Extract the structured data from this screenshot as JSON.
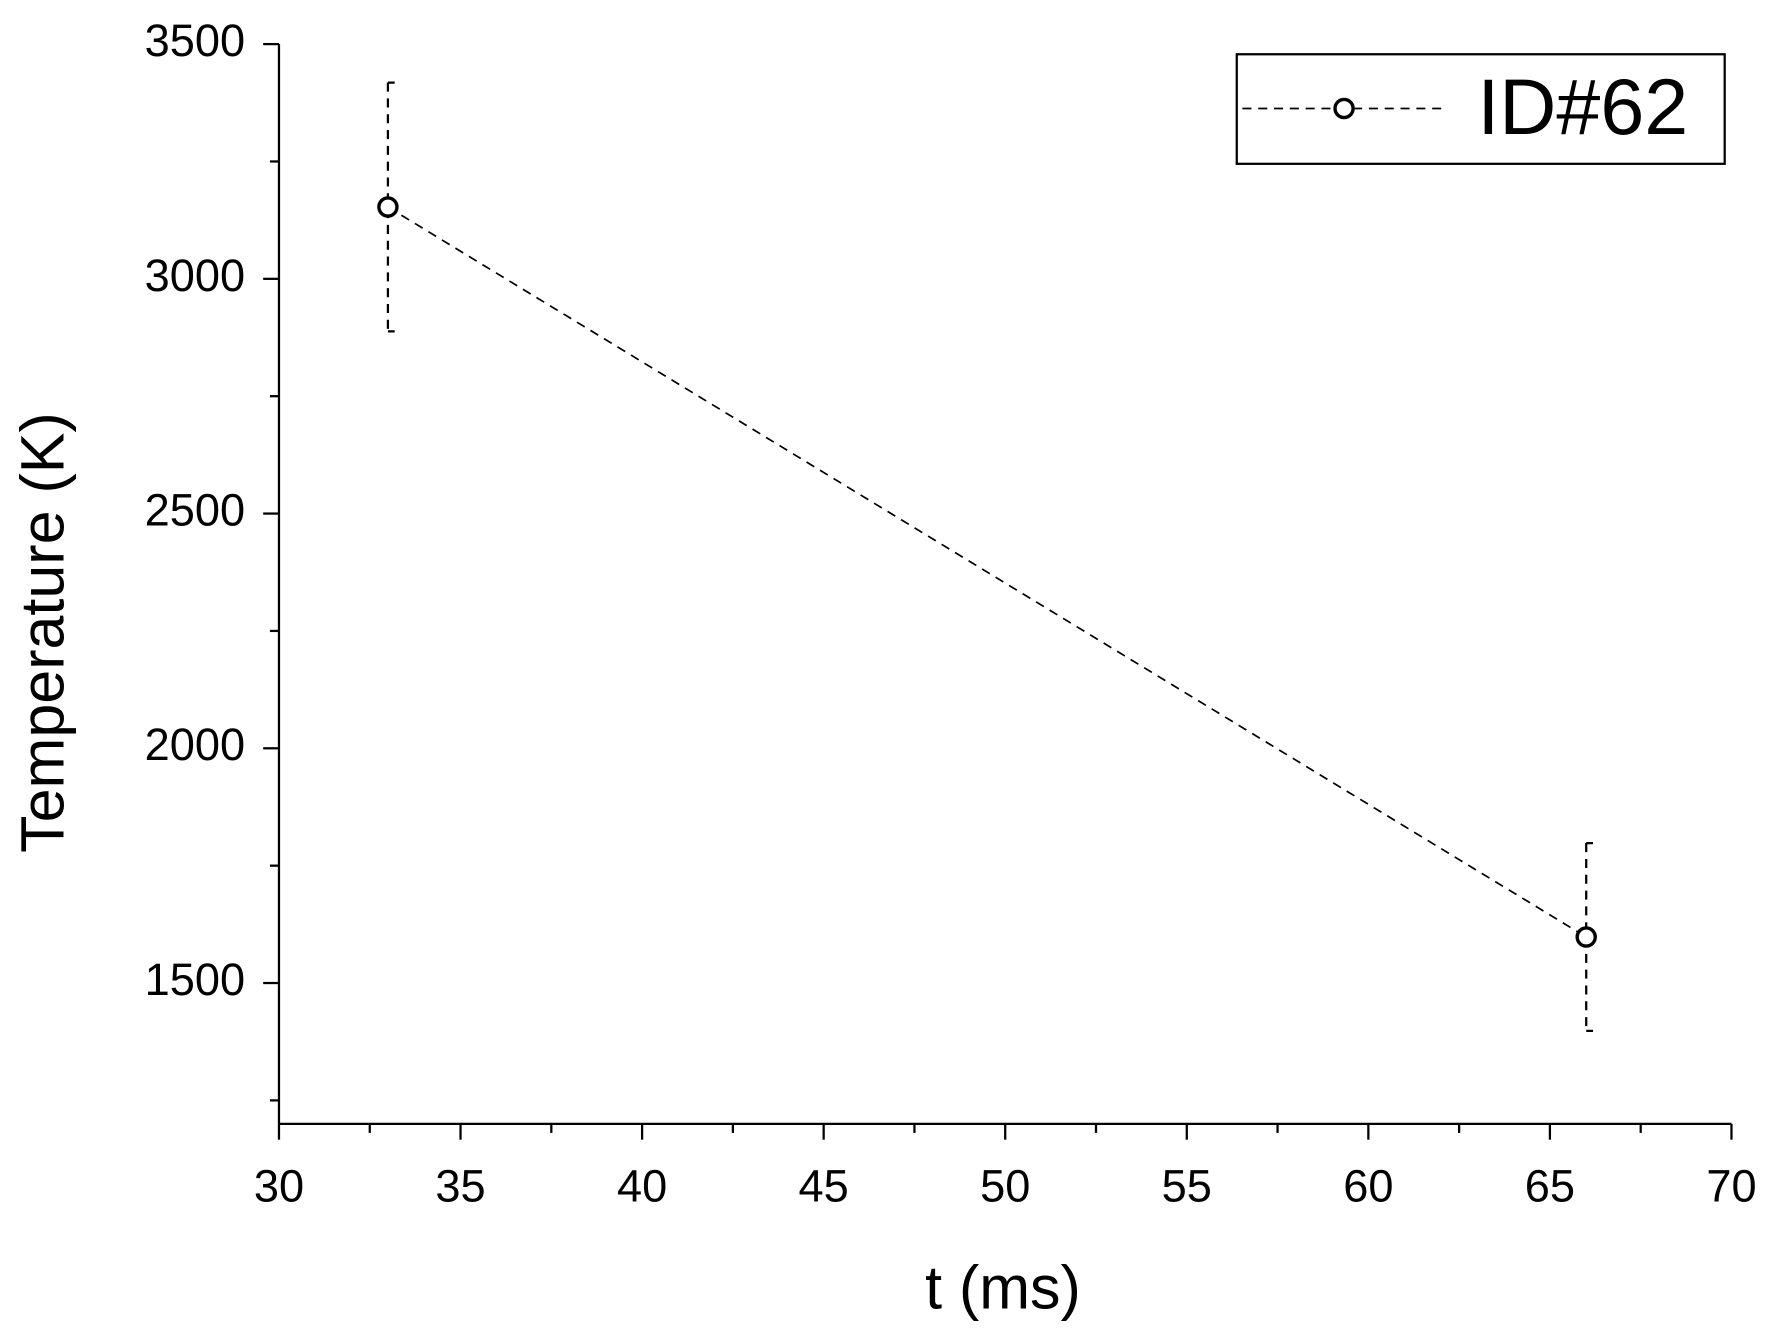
{
  "chart_data": {
    "type": "line",
    "x_label": "t (ms)",
    "y_label": "Temperature (K)",
    "series": [
      {
        "name": "ID#62",
        "color": "#000000",
        "x": [
          33,
          66
        ],
        "values": [
          3153,
          1598
        ],
        "errors": [
          265,
          200
        ]
      }
    ],
    "xlim": [
      30,
      70
    ],
    "xticks": [
      30,
      35,
      40,
      45,
      50,
      55,
      60,
      65,
      70
    ],
    "x_minor_ticks": [
      32.5,
      37.5,
      42.5,
      47.5,
      52.5,
      57.5,
      62.5,
      67.5
    ],
    "ylim": [
      1200,
      3500
    ],
    "yticks": [
      1500,
      2000,
      2500,
      3000,
      3500
    ],
    "y_minor_ticks": [
      1250,
      1750,
      2250,
      2750,
      3250
    ],
    "grid": false,
    "legend": "upper right"
  }
}
